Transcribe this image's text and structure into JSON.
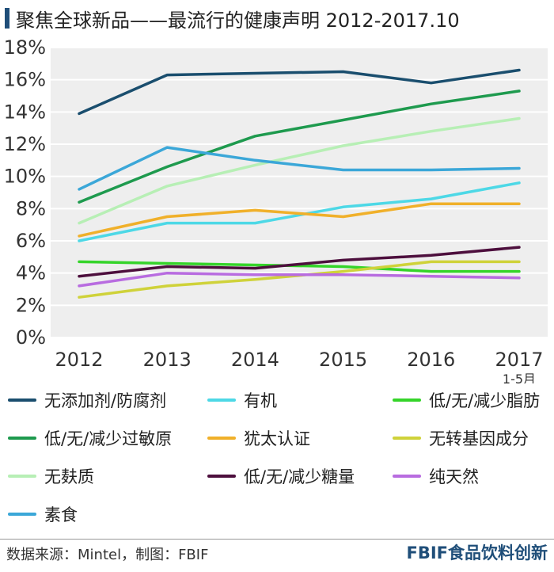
{
  "title": "聚焦全球新品——最流行的健康声明 2012-2017.10",
  "colors": {
    "accent": "#1f4e79",
    "plot_bg": "#eeeeee",
    "grid": "#ffffff"
  },
  "footer": {
    "source": "数据来源：Mintel，制图：FBIF",
    "brand": "FBIF食品饮料创新"
  },
  "chart_data": {
    "type": "line",
    "title": "",
    "xlabel": "",
    "ylabel": "",
    "categories": [
      "2012",
      "2013",
      "2014",
      "2015",
      "2016",
      "2017"
    ],
    "category_sublabels": [
      "",
      "",
      "",
      "",
      "",
      "1-5月"
    ],
    "y_ticks": [
      "0%",
      "2%",
      "4%",
      "6%",
      "8%",
      "10%",
      "12%",
      "14%",
      "16%",
      "18%"
    ],
    "ylim": [
      0,
      18
    ],
    "grid": true,
    "legend_position": "bottom",
    "series": [
      {
        "name": "无添加剂/防腐剂",
        "color": "#1a4e6e",
        "values": [
          13.9,
          16.3,
          16.4,
          16.5,
          15.8,
          16.6
        ]
      },
      {
        "name": "有机",
        "color": "#4dd8e6",
        "values": [
          6.0,
          7.1,
          7.1,
          8.1,
          8.6,
          9.6
        ]
      },
      {
        "name": "低/无/减少脂肪",
        "color": "#35d42a",
        "values": [
          4.7,
          4.6,
          4.5,
          4.4,
          4.1,
          4.1
        ]
      },
      {
        "name": "低/无/减少过敏原",
        "color": "#1e9a4e",
        "values": [
          8.4,
          10.6,
          12.5,
          13.5,
          14.5,
          15.3
        ]
      },
      {
        "name": "犹太认证",
        "color": "#f0b02a",
        "values": [
          6.3,
          7.5,
          7.9,
          7.5,
          8.3,
          8.3
        ]
      },
      {
        "name": "无转基因成分",
        "color": "#cfd23a",
        "values": [
          2.5,
          3.2,
          3.6,
          4.1,
          4.7,
          4.7
        ]
      },
      {
        "name": "无麸质",
        "color": "#b7efb5",
        "values": [
          7.1,
          9.4,
          10.7,
          11.9,
          12.8,
          13.6
        ]
      },
      {
        "name": "低/无/减少糖量",
        "color": "#4d0f3d",
        "values": [
          3.8,
          4.4,
          4.3,
          4.8,
          5.1,
          5.6
        ]
      },
      {
        "name": "纯天然",
        "color": "#b86ce0",
        "values": [
          3.2,
          4.0,
          3.9,
          3.9,
          3.8,
          3.7
        ]
      },
      {
        "name": "素食",
        "color": "#3ba7d8",
        "values": [
          9.2,
          11.8,
          11.0,
          10.4,
          10.4,
          10.5
        ]
      }
    ]
  }
}
